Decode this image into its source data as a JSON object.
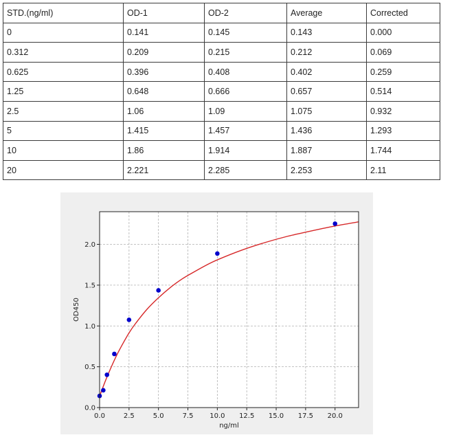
{
  "table": {
    "headers": [
      "STD.(ng/ml)",
      "OD-1",
      "OD-2",
      "Average",
      "Corrected"
    ],
    "rows": [
      [
        "0",
        "0.141",
        "0.145",
        "0.143",
        "0.000"
      ],
      [
        "0.312",
        "0.209",
        "0.215",
        "0.212",
        "0.069"
      ],
      [
        "0.625",
        "0.396",
        "0.408",
        "0.402",
        "0.259"
      ],
      [
        "1.25",
        "0.648",
        "0.666",
        "0.657",
        "0.514"
      ],
      [
        "2.5",
        "1.06",
        "1.09",
        "1.075",
        "0.932"
      ],
      [
        "5",
        "1.415",
        "1.457",
        "1.436",
        "1.293"
      ],
      [
        "10",
        "1.86",
        "1.914",
        "1.887",
        "1.744"
      ],
      [
        "20",
        "2.221",
        "2.285",
        "2.253",
        "2.11"
      ]
    ]
  },
  "chart_data": {
    "type": "scatter",
    "title": "",
    "xlabel": "ng/ml",
    "ylabel": "OD450",
    "xlim": [
      0,
      22
    ],
    "ylim": [
      0,
      2.4
    ],
    "xticks": [
      0.0,
      2.5,
      5.0,
      7.5,
      10.0,
      12.5,
      15.0,
      17.5,
      20.0
    ],
    "xtick_labels": [
      "0.0",
      "2.5",
      "5.0",
      "7.5",
      "10.0",
      "12.5",
      "15.0",
      "17.5",
      "20.0"
    ],
    "yticks": [
      0.0,
      0.5,
      1.0,
      1.5,
      2.0
    ],
    "ytick_labels": [
      "0.0",
      "0.5",
      "1.0",
      "1.5",
      "2.0"
    ],
    "grid": true,
    "series": [
      {
        "kind": "points",
        "color": "#0000cc",
        "x": [
          0,
          0.312,
          0.625,
          1.25,
          2.5,
          5,
          10,
          20
        ],
        "y": [
          0.143,
          0.212,
          0.402,
          0.657,
          1.075,
          1.436,
          1.887,
          2.253
        ]
      },
      {
        "kind": "fit-curve",
        "color": "#d62728",
        "x": [
          0,
          0.5,
          1,
          1.5,
          2,
          2.5,
          3,
          4,
          5,
          6,
          7,
          8,
          9,
          10,
          12,
          14,
          16,
          18,
          20,
          22
        ],
        "y": [
          0.14,
          0.33,
          0.5,
          0.655,
          0.79,
          0.915,
          1.02,
          1.2,
          1.345,
          1.47,
          1.575,
          1.66,
          1.74,
          1.81,
          1.925,
          2.02,
          2.1,
          2.165,
          2.225,
          2.275
        ]
      }
    ]
  }
}
